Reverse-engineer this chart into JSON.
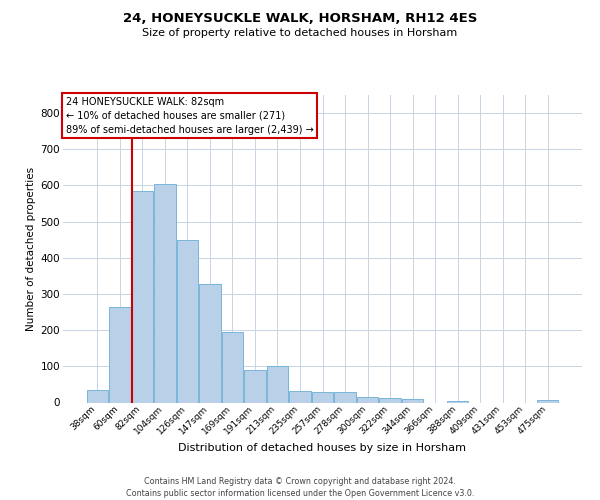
{
  "title_line1": "24, HONEYSUCKLE WALK, HORSHAM, RH12 4ES",
  "title_line2": "Size of property relative to detached houses in Horsham",
  "xlabel": "Distribution of detached houses by size in Horsham",
  "ylabel": "Number of detached properties",
  "footer_line1": "Contains HM Land Registry data © Crown copyright and database right 2024.",
  "footer_line2": "Contains public sector information licensed under the Open Government Licence v3.0.",
  "categories": [
    "38sqm",
    "60sqm",
    "82sqm",
    "104sqm",
    "126sqm",
    "147sqm",
    "169sqm",
    "191sqm",
    "213sqm",
    "235sqm",
    "257sqm",
    "278sqm",
    "300sqm",
    "322sqm",
    "344sqm",
    "366sqm",
    "388sqm",
    "409sqm",
    "431sqm",
    "453sqm",
    "475sqm"
  ],
  "values": [
    35,
    265,
    585,
    603,
    450,
    328,
    195,
    90,
    102,
    33,
    30,
    30,
    15,
    13,
    10,
    0,
    5,
    0,
    0,
    0,
    7
  ],
  "bar_color": "#b8d0e8",
  "bar_edge_color": "#6aaed6",
  "highlight_index": 2,
  "annotation_line1": "24 HONEYSUCKLE WALK: 82sqm",
  "annotation_line2": "← 10% of detached houses are smaller (271)",
  "annotation_line3": "89% of semi-detached houses are larger (2,439) →",
  "ann_box_fc": "#ffffff",
  "ann_box_ec": "#cc0000",
  "vline_color": "#cc0000",
  "ylim_max": 850,
  "yticks": [
    0,
    100,
    200,
    300,
    400,
    500,
    600,
    700,
    800
  ],
  "grid_color": "#c8d4e3",
  "bg_color": "#ffffff",
  "title1_fontsize": 9.5,
  "title2_fontsize": 8.0,
  "ylabel_fontsize": 7.5,
  "xlabel_fontsize": 8.0,
  "xtick_fontsize": 6.5,
  "ytick_fontsize": 7.5,
  "ann_fontsize": 7.0,
  "footer_fontsize": 5.8
}
